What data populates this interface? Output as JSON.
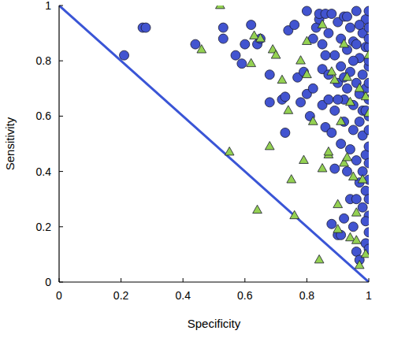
{
  "chart_data": {
    "type": "scatter",
    "x_label": "Specificity",
    "y_label": "Sensitivity",
    "xlim": [
      0,
      1
    ],
    "ylim": [
      0,
      1
    ],
    "xticks": [
      0,
      0.2,
      0.4,
      0.6,
      0.8,
      1
    ],
    "yticks": [
      0,
      0.2,
      0.4,
      0.6,
      0.8,
      1
    ],
    "grid": false,
    "series": [
      {
        "type": "scatter",
        "marker": "circle",
        "color": "#4254d0",
        "x": [
          0.21,
          0.27,
          0.28,
          0.44,
          0.53,
          0.53,
          0.57,
          0.59,
          0.6,
          0.62,
          0.64,
          0.65,
          0.68,
          0.68,
          0.72,
          0.73,
          0.73,
          0.74,
          0.76,
          0.77,
          0.78,
          0.79,
          0.8,
          0.8,
          0.81,
          0.82,
          0.83,
          0.84,
          0.84,
          0.85,
          0.85,
          0.85,
          0.86,
          0.86,
          0.87,
          0.87,
          0.87,
          0.88,
          0.88,
          0.88,
          0.89,
          0.89,
          0.89,
          0.9,
          0.9,
          0.9,
          0.91,
          0.91,
          0.91,
          0.91,
          0.92,
          0.92,
          0.92,
          0.92,
          0.93,
          0.93,
          0.93,
          0.94,
          0.94,
          0.94,
          0.94,
          0.95,
          0.95,
          0.95,
          0.95,
          0.96,
          0.96,
          0.96,
          0.96,
          0.97,
          0.97,
          0.97,
          0.97,
          0.97,
          0.98,
          0.98,
          0.98,
          0.98,
          0.98,
          0.99,
          0.99,
          0.99,
          0.99,
          0.99,
          0.99,
          1.0,
          1.0,
          1.0,
          1.0,
          1.0,
          1.0,
          1.0,
          1.0,
          1.0,
          1.0,
          1.0,
          1.0,
          1.0,
          1.0,
          1.0,
          1.0,
          1.0,
          0.96,
          0.93,
          0.97,
          0.95,
          0.92,
          0.9,
          0.86,
          0.82,
          0.99,
          0.98,
          0.96,
          0.99
        ],
        "values": [
          0.82,
          0.92,
          0.92,
          0.86,
          0.92,
          0.88,
          0.82,
          0.79,
          0.86,
          0.93,
          0.86,
          0.88,
          0.75,
          0.65,
          0.66,
          0.54,
          0.67,
          0.91,
          0.93,
          0.74,
          0.65,
          0.76,
          0.68,
          0.98,
          0.6,
          0.7,
          0.92,
          0.95,
          0.97,
          0.64,
          0.77,
          0.86,
          0.56,
          0.97,
          0.66,
          0.75,
          0.9,
          0.54,
          0.21,
          0.97,
          0.82,
          0.62,
          0.41,
          0.17,
          0.72,
          0.94,
          0.78,
          0.5,
          0.17,
          0.88,
          0.58,
          0.66,
          0.23,
          0.96,
          0.7,
          0.4,
          0.84,
          0.48,
          0.3,
          0.92,
          0.76,
          0.55,
          0.64,
          0.2,
          0.87,
          0.11,
          0.44,
          0.72,
          0.98,
          0.58,
          0.81,
          0.36,
          0.08,
          0.68,
          0.53,
          0.9,
          0.27,
          0.75,
          0.62,
          0.46,
          0.85,
          0.95,
          0.14,
          0.33,
          0.7,
          0.98,
          0.92,
          0.85,
          0.78,
          0.72,
          0.66,
          0.6,
          0.55,
          0.49,
          0.43,
          0.37,
          0.3,
          0.24,
          0.18,
          0.12,
          0.8,
          0.88,
          0.86,
          0.96,
          0.93,
          0.8,
          0.74,
          0.66,
          0.82,
          0.88,
          0.62,
          0.4,
          0.3,
          0.22
        ]
      },
      {
        "type": "scatter",
        "marker": "triangle",
        "color": "#94d152",
        "x": [
          0.46,
          0.52,
          0.55,
          0.62,
          0.63,
          0.64,
          0.65,
          0.68,
          0.69,
          0.7,
          0.72,
          0.74,
          0.75,
          0.76,
          0.78,
          0.79,
          0.8,
          0.82,
          0.84,
          0.85,
          0.85,
          0.87,
          0.87,
          0.88,
          0.89,
          0.9,
          0.9,
          0.91,
          0.92,
          0.92,
          0.93,
          0.93,
          0.94,
          0.94,
          0.95,
          0.96,
          0.96,
          0.97,
          0.97,
          0.98,
          0.99,
          0.99,
          1.0,
          1.0,
          0.8
        ],
        "values": [
          0.84,
          1.0,
          0.47,
          0.79,
          0.89,
          0.26,
          0.88,
          0.49,
          0.84,
          0.82,
          0.73,
          0.62,
          0.37,
          0.24,
          0.8,
          0.44,
          0.75,
          0.58,
          0.08,
          0.41,
          0.93,
          0.46,
          0.47,
          0.76,
          0.73,
          0.19,
          0.28,
          0.58,
          0.43,
          0.86,
          0.45,
          0.74,
          0.65,
          0.16,
          0.38,
          0.15,
          0.25,
          0.06,
          0.7,
          0.37,
          0.67,
          0.1,
          0.82,
          0.61,
          0.87
        ]
      },
      {
        "type": "line",
        "color": "#3a55d6",
        "line_style": "solid",
        "x": [
          0,
          1
        ],
        "values": [
          1,
          0
        ]
      }
    ]
  }
}
